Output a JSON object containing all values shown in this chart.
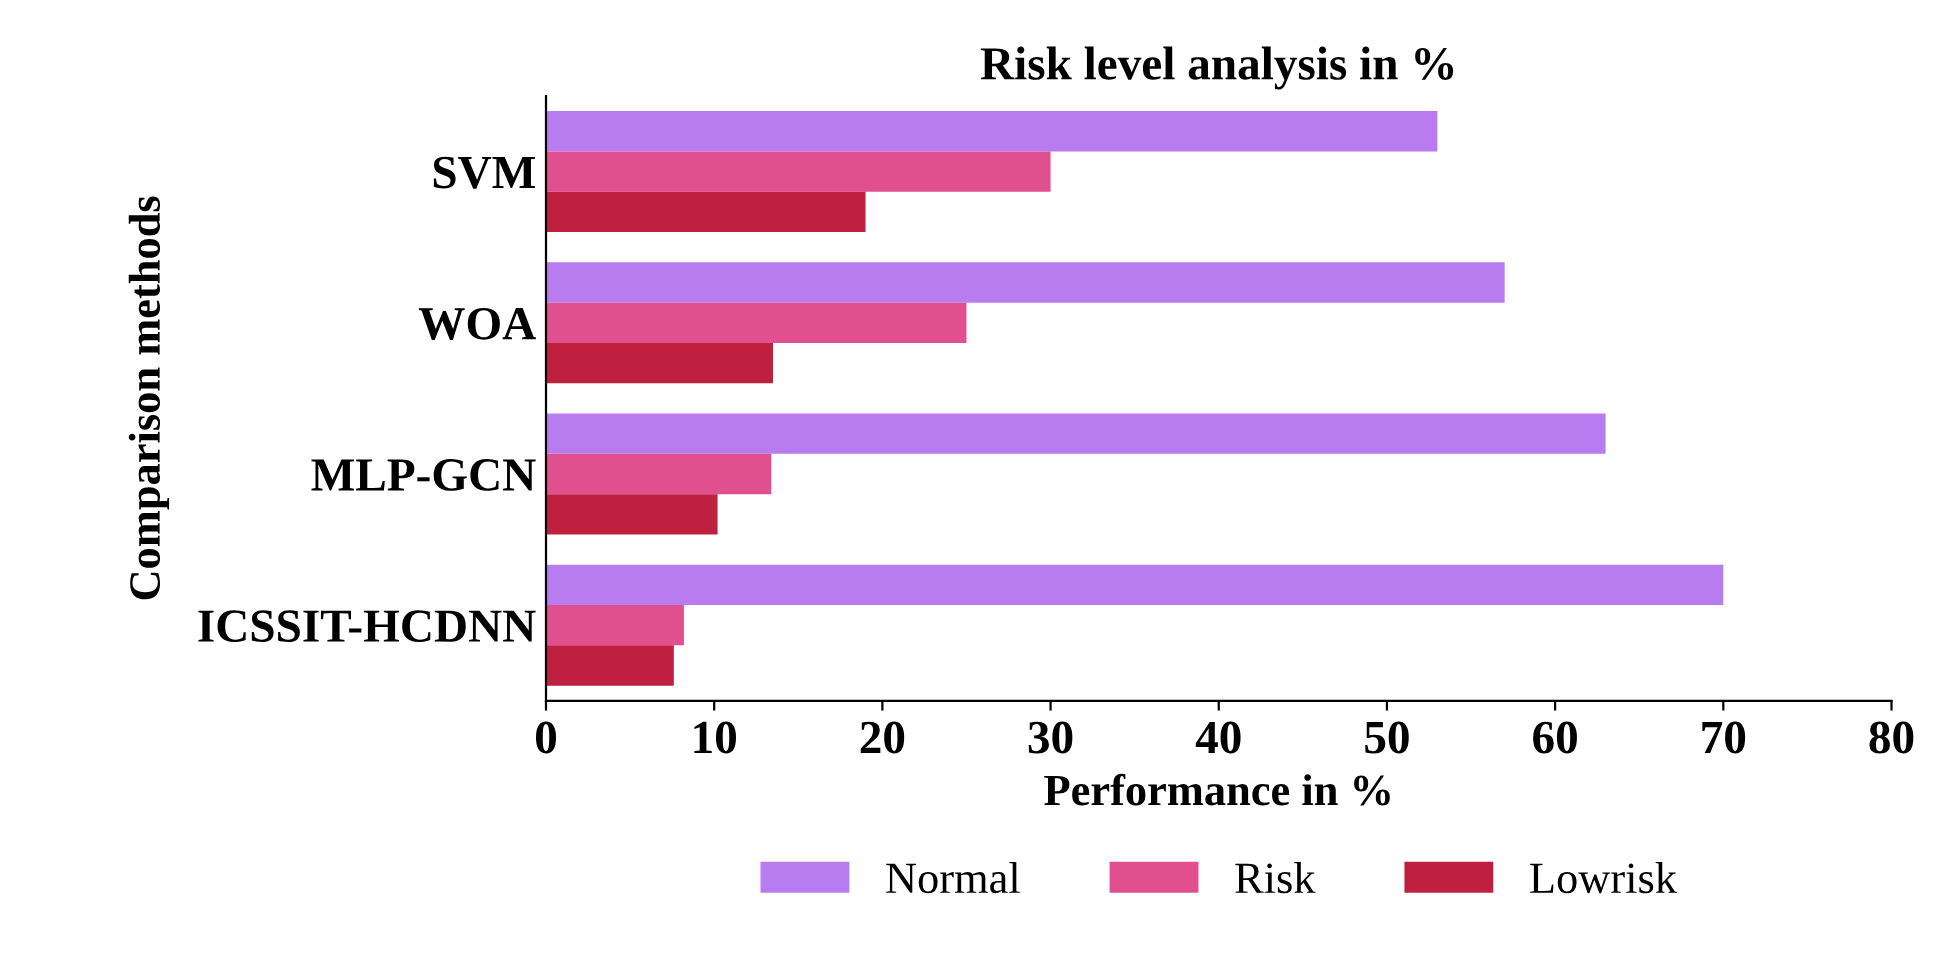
{
  "chart_data": {
    "type": "bar",
    "orientation": "horizontal",
    "title": "Risk level analysis in %",
    "xlabel": "Performance in %",
    "ylabel": "Comparison methods",
    "categories": [
      "SVM",
      "WOA",
      "MLP-GCN",
      "ICSSIT-HCDNN"
    ],
    "series": [
      {
        "name": "Normal",
        "color": "#b87cf0",
        "values": [
          53,
          57,
          63,
          70
        ]
      },
      {
        "name": "Risk",
        "color": "#e0508f",
        "values": [
          30,
          25,
          13.4,
          8.2
        ]
      },
      {
        "name": "Lowrisk",
        "color": "#c0203f",
        "values": [
          19,
          13.5,
          10.2,
          7.6
        ]
      }
    ],
    "xlim": [
      0,
      80
    ],
    "xticks": [
      0,
      10,
      20,
      30,
      40,
      50,
      60,
      70,
      80
    ],
    "grid": false,
    "legend": "bottom"
  }
}
